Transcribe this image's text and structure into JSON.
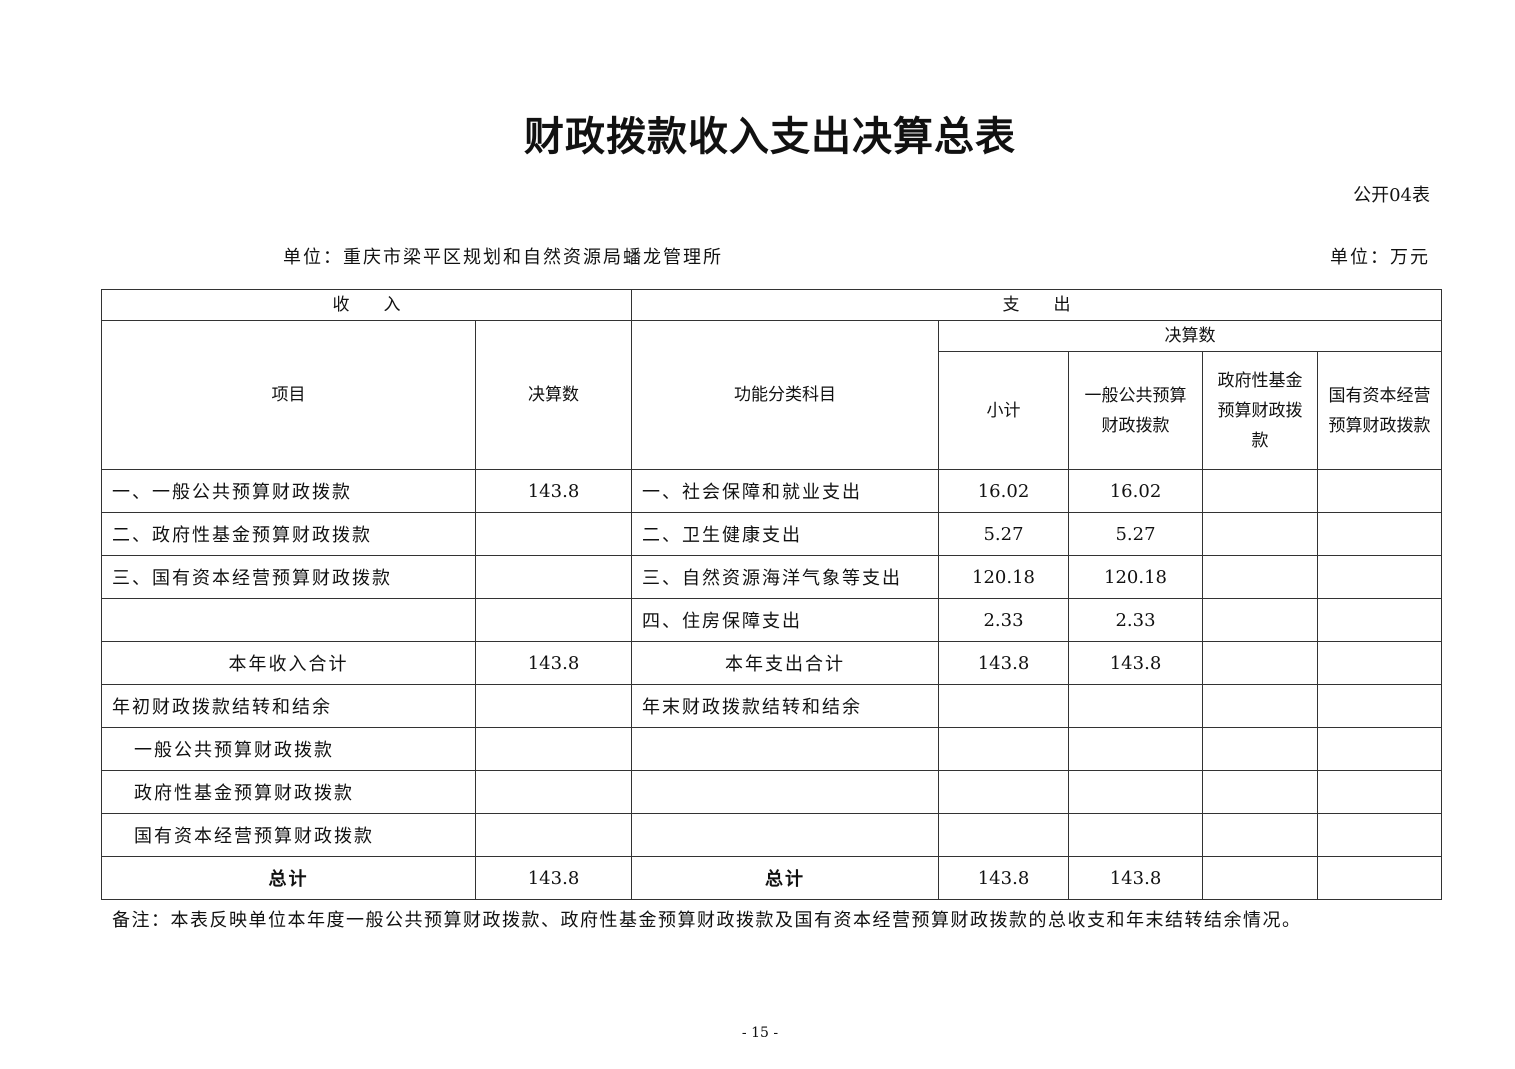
{
  "title": "财政拨款收入支出决算总表",
  "table_no": "公开04表",
  "unit_org": "单位：重庆市梁平区规划和自然资源局蟠龙管理所",
  "unit_money": "单位：万元",
  "headers": {
    "income": "收　　入",
    "expense": "支　　出",
    "item": "项目",
    "income_amount": "决算数",
    "func_category": "功能分类科目",
    "expense_amount": "决算数",
    "subtotal": "小计",
    "general_budget": "一般公共预算财政拨款",
    "gov_fund": "政府性基金预算财政拨款",
    "state_capital": "国有资本经营预算财政拨款"
  },
  "rows": [
    {
      "income_item": "一、一般公共预算财政拨款",
      "income_amount": "143.8",
      "expense_item": "一、社会保障和就业支出",
      "subtotal": "16.02",
      "general": "16.02",
      "fund": "",
      "capital": ""
    },
    {
      "income_item": "二、政府性基金预算财政拨款",
      "income_amount": "",
      "expense_item": "二、卫生健康支出",
      "subtotal": "5.27",
      "general": "5.27",
      "fund": "",
      "capital": ""
    },
    {
      "income_item": "三、国有资本经营预算财政拨款",
      "income_amount": "",
      "expense_item": "三、自然资源海洋气象等支出",
      "subtotal": "120.18",
      "general": "120.18",
      "fund": "",
      "capital": ""
    },
    {
      "income_item": "",
      "income_amount": "",
      "expense_item": "四、住房保障支出",
      "subtotal": "2.33",
      "general": "2.33",
      "fund": "",
      "capital": ""
    },
    {
      "income_item": "本年收入合计",
      "income_amount": "143.8",
      "expense_item": "本年支出合计",
      "subtotal": "143.8",
      "general": "143.8",
      "fund": "",
      "capital": ""
    },
    {
      "income_item": "年初财政拨款结转和结余",
      "income_amount": "",
      "expense_item": "年末财政拨款结转和结余",
      "subtotal": "",
      "general": "",
      "fund": "",
      "capital": ""
    },
    {
      "income_item": "一般公共预算财政拨款",
      "income_amount": "",
      "expense_item": "",
      "subtotal": "",
      "general": "",
      "fund": "",
      "capital": ""
    },
    {
      "income_item": "政府性基金预算财政拨款",
      "income_amount": "",
      "expense_item": "",
      "subtotal": "",
      "general": "",
      "fund": "",
      "capital": ""
    },
    {
      "income_item": "国有资本经营预算财政拨款",
      "income_amount": "",
      "expense_item": "",
      "subtotal": "",
      "general": "",
      "fund": "",
      "capital": ""
    },
    {
      "income_item": "总计",
      "income_amount": "143.8",
      "expense_item": "总计",
      "subtotal": "143.8",
      "general": "143.8",
      "fund": "",
      "capital": ""
    }
  ],
  "note": "备注：本表反映单位本年度一般公共预算财政拨款、政府性基金预算财政拨款及国有资本经营预算财政拨款的总收支和年末结转结余情况。",
  "page_number": "- 15 -"
}
